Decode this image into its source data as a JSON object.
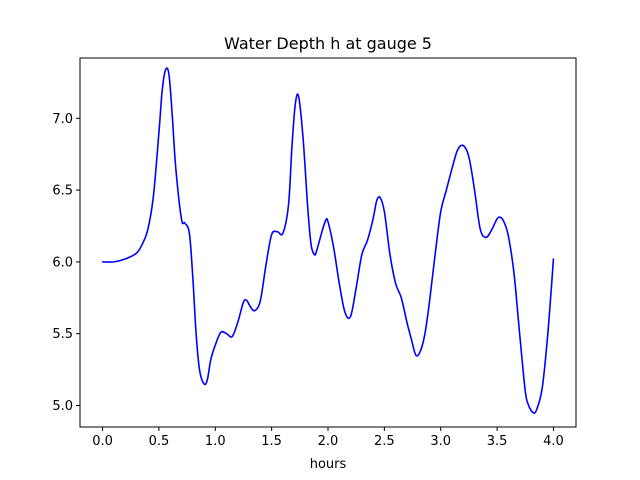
{
  "chart_data": {
    "type": "line",
    "title": "Water Depth h at gauge 5",
    "xlabel": "hours",
    "ylabel": "",
    "xlim": [
      -0.2,
      4.2
    ],
    "ylim": [
      4.85,
      7.42
    ],
    "xticks": [
      0.0,
      0.5,
      1.0,
      1.5,
      2.0,
      2.5,
      3.0,
      3.5,
      4.0
    ],
    "xtick_labels": [
      "0.0",
      "0.5",
      "1.0",
      "1.5",
      "2.0",
      "2.5",
      "3.0",
      "3.5",
      "4.0"
    ],
    "yticks": [
      5.0,
      5.5,
      6.0,
      6.5,
      7.0
    ],
    "ytick_labels": [
      "5.0",
      "5.5",
      "6.0",
      "6.5",
      "7.0"
    ],
    "grid": false,
    "series": [
      {
        "color": "#0000ff",
        "x": [
          0.0,
          0.1,
          0.2,
          0.3,
          0.35,
          0.4,
          0.45,
          0.5,
          0.53,
          0.56,
          0.59,
          0.62,
          0.65,
          0.7,
          0.73,
          0.77,
          0.8,
          0.83,
          0.86,
          0.9,
          0.93,
          0.96,
          1.0,
          1.05,
          1.1,
          1.15,
          1.2,
          1.25,
          1.28,
          1.31,
          1.35,
          1.4,
          1.45,
          1.5,
          1.55,
          1.6,
          1.65,
          1.68,
          1.71,
          1.74,
          1.78,
          1.82,
          1.85,
          1.88,
          1.9,
          1.95,
          1.98,
          2.0,
          2.05,
          2.1,
          2.15,
          2.2,
          2.25,
          2.3,
          2.35,
          2.4,
          2.43,
          2.46,
          2.5,
          2.55,
          2.6,
          2.65,
          2.7,
          2.74,
          2.78,
          2.82,
          2.86,
          2.9,
          2.95,
          3.0,
          3.05,
          3.1,
          3.15,
          3.2,
          3.25,
          3.3,
          3.35,
          3.4,
          3.45,
          3.5,
          3.53,
          3.56,
          3.6,
          3.65,
          3.7,
          3.75,
          3.78,
          3.82,
          3.85,
          3.9,
          3.95,
          4.0
        ],
        "y": [
          6.0,
          6.0,
          6.02,
          6.06,
          6.12,
          6.22,
          6.45,
          6.9,
          7.2,
          7.34,
          7.3,
          7.0,
          6.65,
          6.3,
          6.27,
          6.2,
          5.9,
          5.5,
          5.25,
          5.15,
          5.18,
          5.32,
          5.42,
          5.51,
          5.5,
          5.48,
          5.58,
          5.72,
          5.73,
          5.69,
          5.66,
          5.73,
          5.98,
          6.19,
          6.21,
          6.2,
          6.4,
          6.8,
          7.1,
          7.15,
          6.85,
          6.38,
          6.12,
          6.05,
          6.08,
          6.22,
          6.29,
          6.28,
          6.1,
          5.85,
          5.65,
          5.62,
          5.82,
          6.05,
          6.15,
          6.3,
          6.42,
          6.45,
          6.35,
          6.05,
          5.85,
          5.75,
          5.58,
          5.46,
          5.35,
          5.38,
          5.5,
          5.72,
          6.05,
          6.35,
          6.5,
          6.65,
          6.78,
          6.81,
          6.73,
          6.5,
          6.23,
          6.17,
          6.22,
          6.3,
          6.31,
          6.28,
          6.18,
          5.92,
          5.5,
          5.1,
          5.0,
          4.95,
          4.97,
          5.12,
          5.5,
          6.02
        ]
      }
    ]
  }
}
